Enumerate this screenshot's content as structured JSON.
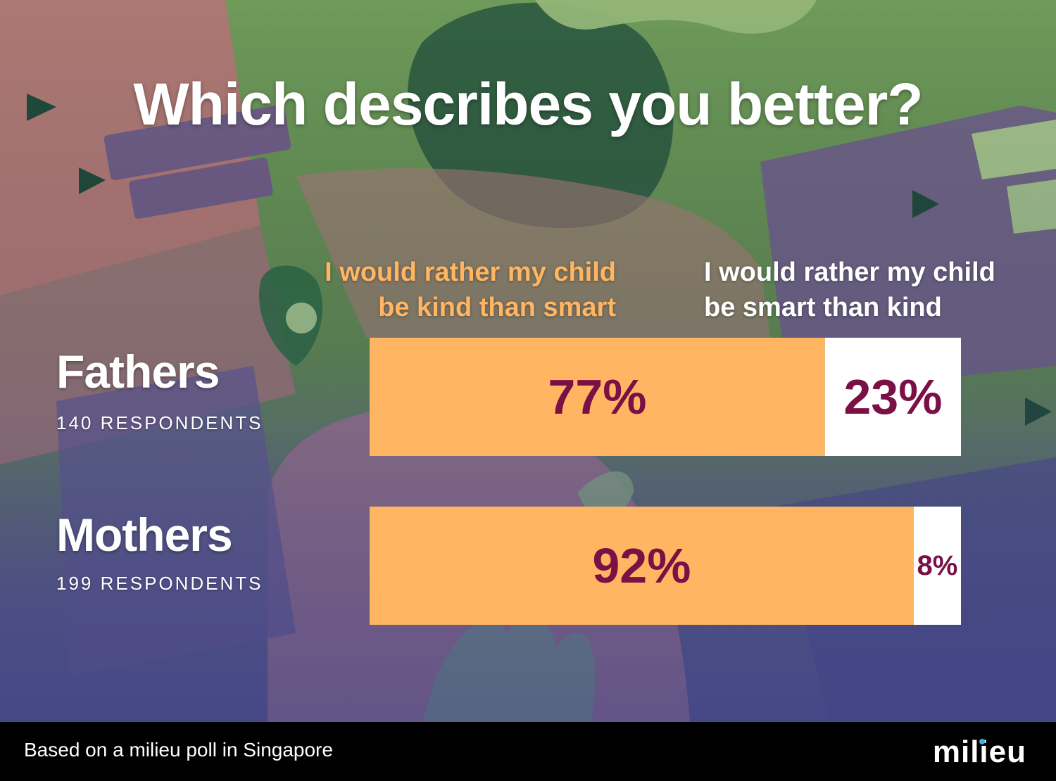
{
  "title": "Which describes you better?",
  "columns": {
    "left": "I would rather my child be kind than smart",
    "right": "I would rather my child be smart than kind"
  },
  "groups": [
    {
      "name": "Fathers",
      "respondents": "140 RESPONDENTS"
    },
    {
      "name": "Mothers",
      "respondents": "199 RESPONDENTS"
    }
  ],
  "footer": {
    "note": "Based on a milieu poll in Singapore",
    "logo": "milieu"
  },
  "colors": {
    "kind": "#FFB562",
    "smart": "#FFFFFF",
    "label": "#7A1046",
    "left_header": "#FFB562",
    "logo_dot": "#3FB0E0"
  },
  "chart_data": {
    "type": "bar",
    "orientation": "horizontal",
    "stacked": true,
    "normalized": true,
    "categories": [
      "Fathers",
      "Mothers"
    ],
    "series": [
      {
        "name": "I would rather my child be kind than smart",
        "values": [
          77,
          92
        ],
        "labels": [
          "77%",
          "92%"
        ]
      },
      {
        "name": "I would rather my child be smart than kind",
        "values": [
          23,
          8
        ],
        "labels": [
          "23%",
          "8%"
        ]
      }
    ],
    "title": "Which describes you better?",
    "unit": "%",
    "xlim": [
      0,
      100
    ]
  }
}
